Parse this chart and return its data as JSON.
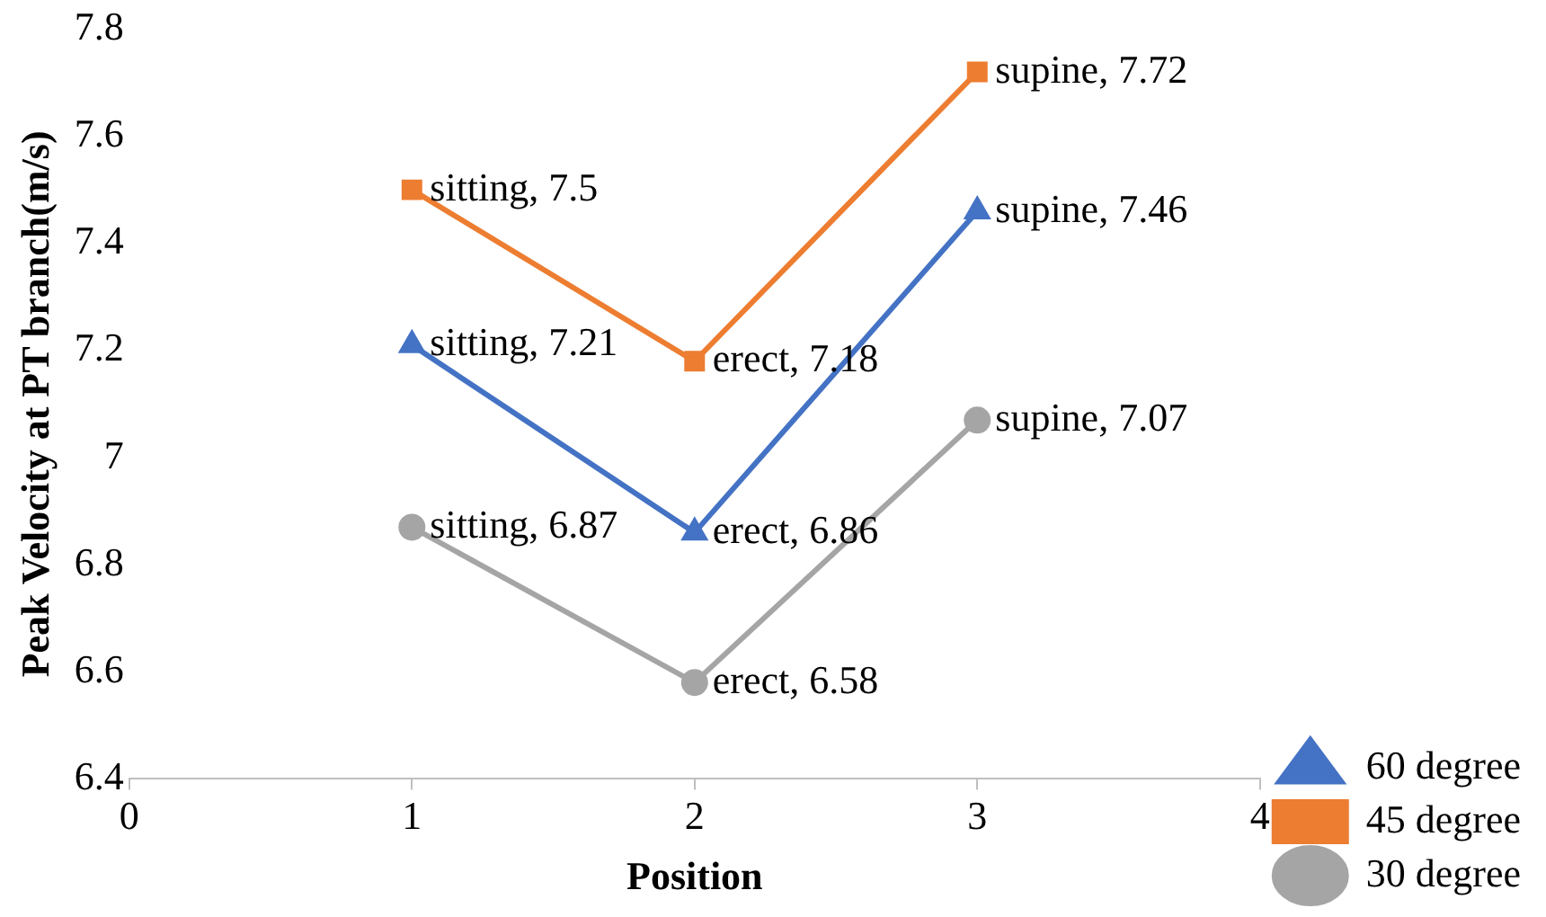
{
  "chart_data": {
    "type": "line",
    "xlabel": "Position",
    "ylabel": "Peak Velocity at PT branch(m/s)",
    "x": [
      1,
      2,
      3
    ],
    "series": [
      {
        "name": "60 degree",
        "color": "#4472c4",
        "marker": "triangle",
        "values": [
          7.21,
          6.86,
          7.46
        ],
        "value_labels": [
          "sitting, 7.21",
          "erect, 6.86",
          "supine, 7.46"
        ]
      },
      {
        "name": "45 degree",
        "color": "#ed7d31",
        "marker": "square",
        "values": [
          7.5,
          7.18,
          7.72
        ],
        "value_labels": [
          "sitting, 7.5",
          "erect, 7.18",
          "supine, 7.72"
        ]
      },
      {
        "name": "30 degree",
        "color": "#a5a5a5",
        "marker": "circle",
        "values": [
          6.87,
          6.58,
          7.07
        ],
        "value_labels": [
          "sitting, 6.87",
          "erect, 6.58",
          "supine, 7.07"
        ]
      }
    ],
    "xlim": [
      0,
      4
    ],
    "xticks": [
      0,
      1,
      2,
      3,
      4
    ],
    "ylim": [
      6.4,
      7.8
    ],
    "yticks": [
      6.4,
      6.6,
      6.8,
      7,
      7.2,
      7.4,
      7.6,
      7.8
    ],
    "grid": false,
    "legend": "right",
    "line_style": "solid"
  }
}
